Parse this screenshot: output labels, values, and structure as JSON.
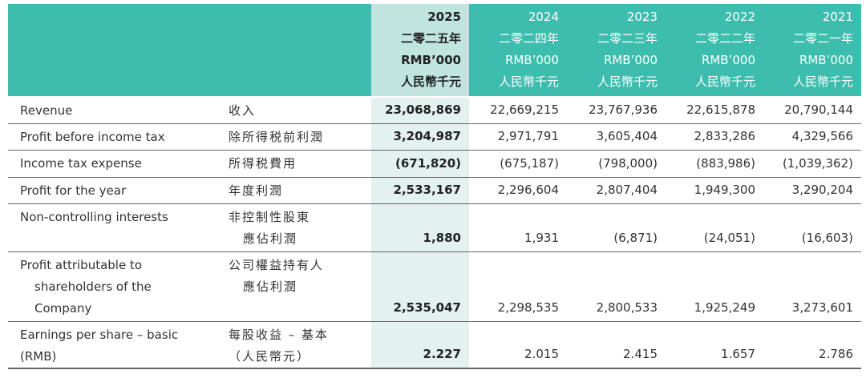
{
  "header": {
    "columns": [
      {
        "lines": [
          "2025",
          "二零二五年",
          "RMB’000",
          "人民幣千元"
        ]
      },
      {
        "lines": [
          "2024",
          "二零二四年",
          "RMB’000",
          "人民幣千元"
        ]
      },
      {
        "lines": [
          "2023",
          "二零二三年",
          "RMB’000",
          "人民幣千元"
        ]
      },
      {
        "lines": [
          "2022",
          "二零二二年",
          "RMB’000",
          "人民幣千元"
        ]
      },
      {
        "lines": [
          "2021",
          "二零二一年",
          "RMB’000",
          "人民幣千元"
        ]
      }
    ]
  },
  "rows": [
    {
      "label_en": [
        "Revenue"
      ],
      "label_zh": [
        "收入"
      ],
      "values": [
        "23,068,869",
        "22,669,215",
        "23,767,936",
        "22,615,878",
        "20,790,144"
      ]
    },
    {
      "label_en": [
        "Profit before income tax"
      ],
      "label_zh": [
        "除所得税前利潤"
      ],
      "values": [
        "3,204,987",
        "2,971,791",
        "3,605,404",
        "2,833,286",
        "4,329,566"
      ]
    },
    {
      "label_en": [
        "Income tax expense"
      ],
      "label_zh": [
        "所得税費用"
      ],
      "values": [
        "(671,820)",
        "(675,187)",
        "(798,000)",
        "(883,986)",
        "(1,039,362)"
      ]
    },
    {
      "label_en": [
        "Profit for the year"
      ],
      "label_zh": [
        "年度利潤"
      ],
      "values": [
        "2,533,167",
        "2,296,604",
        "2,807,404",
        "1,949,300",
        "3,290,204"
      ]
    },
    {
      "label_en": [
        "Non-controlling interests"
      ],
      "label_zh": [
        "非控制性股東",
        "應佔利潤"
      ],
      "values": [
        "1,880",
        "1,931",
        "(6,871)",
        "(24,051)",
        "(16,603)"
      ]
    },
    {
      "label_en": [
        "Profit attributable to",
        "shareholders of the",
        "Company"
      ],
      "label_zh": [
        "公司權益持有人",
        "應佔利潤"
      ],
      "values": [
        "2,535,047",
        "2,298,535",
        "2,800,533",
        "1,925,249",
        "3,273,601"
      ]
    },
    {
      "label_en": [
        "Earnings per share – basic",
        "(RMB)"
      ],
      "label_zh": [
        "每股收益 – 基本",
        "（人民幣元）"
      ],
      "values": [
        "2.227",
        "2.015",
        "2.415",
        "1.657",
        "2.786"
      ]
    }
  ]
}
